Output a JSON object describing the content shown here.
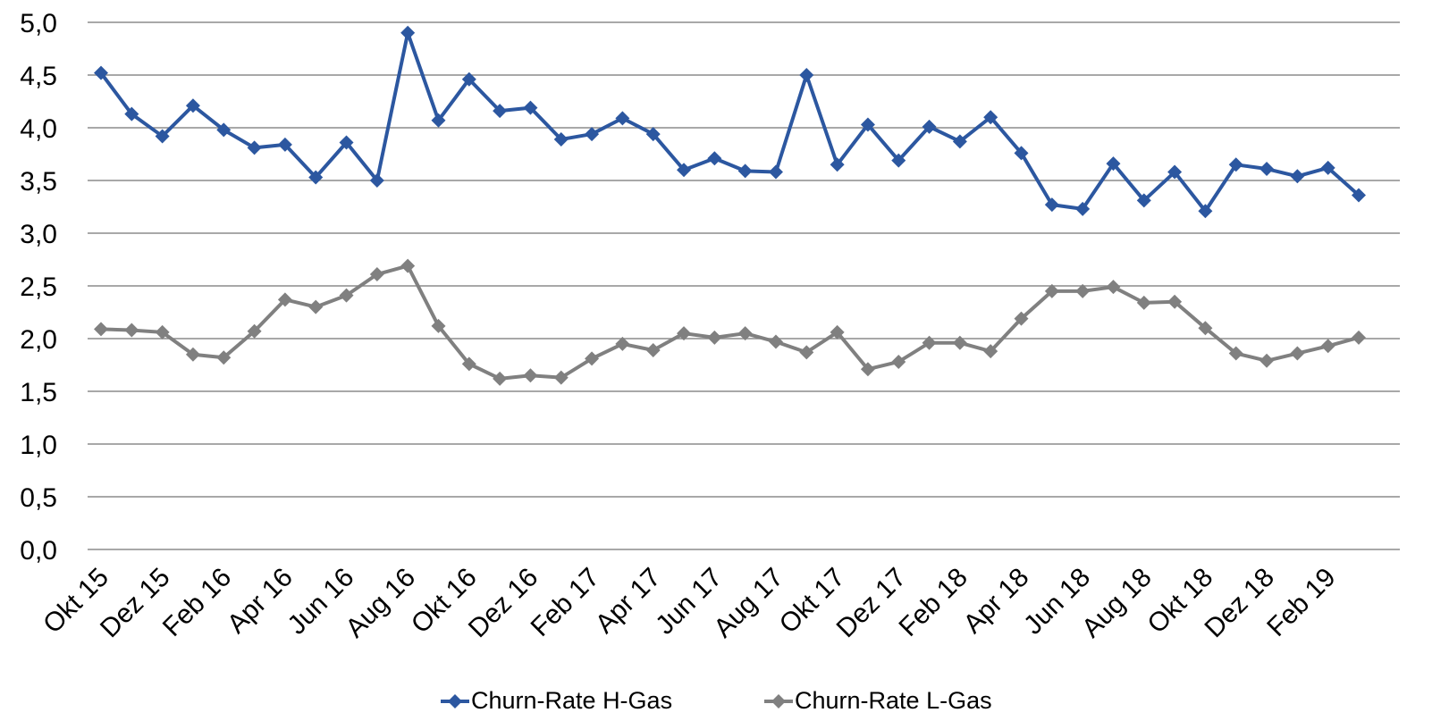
{
  "chart_data": {
    "type": "line",
    "title": "",
    "xlabel": "",
    "ylabel": "",
    "ylim": [
      0,
      5
    ],
    "y_ticks": [
      "0,0",
      "0,5",
      "1,0",
      "1,5",
      "2,0",
      "2,5",
      "3,0",
      "3,5",
      "4,0",
      "4,5",
      "5,0"
    ],
    "grid": "horizontal",
    "legend_position": "bottom",
    "x": [
      "Okt 15",
      "Nov 15",
      "Dez 15",
      "Jan 16",
      "Feb 16",
      "Mrz 16",
      "Apr 16",
      "Mai 16",
      "Jun 16",
      "Jul 16",
      "Aug 16",
      "Sep 16",
      "Okt 16",
      "Nov 16",
      "Dez 16",
      "Jan 17",
      "Feb 17",
      "Mrz 17",
      "Apr 17",
      "Mai 17",
      "Jun 17",
      "Jul 17",
      "Aug 17",
      "Sep 17",
      "Okt 17",
      "Nov 17",
      "Dez 17",
      "Jan 18",
      "Feb 18",
      "Mrz 18",
      "Apr 18",
      "Mai 18",
      "Jun 18",
      "Jul 18",
      "Aug 18",
      "Sep 18",
      "Okt 18",
      "Nov 18",
      "Dez 18",
      "Jan 19",
      "Feb 19",
      "Mrz 19"
    ],
    "x_tick_labels": [
      "Okt 15",
      "Dez 15",
      "Feb 16",
      "Apr 16",
      "Jun 16",
      "Aug 16",
      "Okt 16",
      "Dez 16",
      "Feb 17",
      "Apr 17",
      "Jun 17",
      "Aug 17",
      "Okt 17",
      "Dez 17",
      "Feb 18",
      "Apr 18",
      "Jun 18",
      "Aug 18",
      "Okt 18",
      "Dez 18",
      "Feb 19"
    ],
    "series": [
      {
        "name": "Churn-Rate H-Gas",
        "color": "#2C57A0",
        "values": [
          4.52,
          4.13,
          3.92,
          4.21,
          3.98,
          3.81,
          3.84,
          3.53,
          3.86,
          3.5,
          4.9,
          4.07,
          4.46,
          4.16,
          4.19,
          3.89,
          3.94,
          4.09,
          3.94,
          3.6,
          3.71,
          3.59,
          3.58,
          4.5,
          3.65,
          4.03,
          3.69,
          4.01,
          3.87,
          4.1,
          3.76,
          3.27,
          3.23,
          3.66,
          3.31,
          3.58,
          3.21,
          3.65,
          3.61,
          3.54,
          3.62,
          3.36
        ]
      },
      {
        "name": "Churn-Rate L-Gas",
        "color": "#808080",
        "values": [
          2.09,
          2.08,
          2.06,
          1.85,
          1.82,
          2.07,
          2.37,
          2.3,
          2.41,
          2.61,
          2.69,
          2.12,
          1.76,
          1.62,
          1.65,
          1.63,
          1.81,
          1.95,
          1.89,
          2.05,
          2.01,
          2.05,
          1.97,
          1.87,
          2.06,
          1.71,
          1.78,
          1.96,
          1.96,
          1.88,
          2.19,
          2.45,
          2.45,
          2.49,
          2.34,
          2.35,
          2.1,
          1.86,
          1.79,
          1.86,
          1.93,
          2.01
        ]
      }
    ]
  }
}
